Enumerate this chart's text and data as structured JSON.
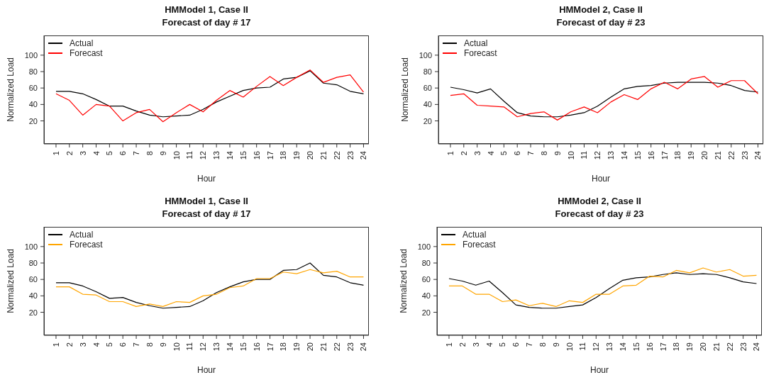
{
  "chart_data": [
    {
      "type": "line",
      "title": "HMModel 1, Case II",
      "subtitle": "Forecast of day # 17",
      "xlabel": "Hour",
      "ylabel": "Normalized Load",
      "x": [
        1,
        2,
        3,
        4,
        5,
        6,
        7,
        8,
        9,
        10,
        11,
        12,
        13,
        14,
        15,
        16,
        17,
        18,
        19,
        20,
        21,
        22,
        23,
        24
      ],
      "xlim": [
        0.1,
        24.4
      ],
      "xticks": [
        1,
        2,
        3,
        4,
        5,
        6,
        7,
        8,
        9,
        10,
        11,
        12,
        13,
        14,
        15,
        16,
        17,
        18,
        19,
        20,
        21,
        22,
        23,
        24
      ],
      "ylim": [
        -8,
        124
      ],
      "yticks": [
        20,
        40,
        60,
        80,
        100
      ],
      "legend": "top left",
      "series": [
        {
          "name": "Actual",
          "color": "#000000",
          "values": [
            56,
            56,
            53,
            46,
            38,
            38,
            32,
            27,
            25,
            26,
            27,
            34,
            43,
            50,
            57,
            60,
            61,
            71,
            73,
            81,
            66,
            64,
            56,
            53
          ]
        },
        {
          "name": "Forecast",
          "color": "#ff0000",
          "values": [
            53,
            45,
            27,
            40,
            38,
            20,
            30,
            34,
            19,
            30,
            40,
            31,
            45,
            57,
            49,
            62,
            74,
            63,
            73,
            82,
            67,
            73,
            76,
            55
          ]
        }
      ]
    },
    {
      "type": "line",
      "title": "HMModel 2, Case II",
      "subtitle": "Forecast of day # 23",
      "xlabel": "Hour",
      "ylabel": "Normalized Load",
      "x": [
        1,
        2,
        3,
        4,
        5,
        6,
        7,
        8,
        9,
        10,
        11,
        12,
        13,
        14,
        15,
        16,
        17,
        18,
        19,
        20,
        21,
        22,
        23,
        24
      ],
      "xlim": [
        0.1,
        24.4
      ],
      "xticks": [
        1,
        2,
        3,
        4,
        5,
        6,
        7,
        8,
        9,
        10,
        11,
        12,
        13,
        14,
        15,
        16,
        17,
        18,
        19,
        20,
        21,
        22,
        23,
        24
      ],
      "ylim": [
        -8,
        124
      ],
      "yticks": [
        20,
        40,
        60,
        80,
        100
      ],
      "legend": "top left",
      "series": [
        {
          "name": "Actual",
          "color": "#000000",
          "values": [
            61,
            58,
            54,
            59,
            44,
            30,
            26,
            25,
            25,
            27,
            30,
            38,
            49,
            59,
            62,
            63,
            66,
            67,
            67,
            67,
            66,
            63,
            57,
            55
          ]
        },
        {
          "name": "Forecast",
          "color": "#ff0000",
          "values": [
            51,
            53,
            39,
            38,
            37,
            25,
            29,
            31,
            21,
            31,
            37,
            30,
            43,
            52,
            46,
            59,
            67,
            59,
            71,
            74,
            61,
            69,
            69,
            53
          ]
        }
      ]
    },
    {
      "type": "line",
      "title": "HMModel 1, Case II",
      "subtitle": "Forecast of day # 17",
      "xlabel": "Hour",
      "ylabel": "Normalized Load",
      "x": [
        1,
        2,
        3,
        4,
        5,
        6,
        7,
        8,
        9,
        10,
        11,
        12,
        13,
        14,
        15,
        16,
        17,
        18,
        19,
        20,
        21,
        22,
        23,
        24
      ],
      "xlim": [
        0.1,
        24.4
      ],
      "xticks": [
        1,
        2,
        3,
        4,
        5,
        6,
        7,
        8,
        9,
        10,
        11,
        12,
        13,
        14,
        15,
        16,
        17,
        18,
        19,
        20,
        21,
        22,
        23,
        24
      ],
      "ylim": [
        -8,
        124
      ],
      "yticks": [
        20,
        40,
        60,
        80,
        100
      ],
      "legend": "top left",
      "series": [
        {
          "name": "Actual",
          "color": "#000000",
          "values": [
            56,
            56,
            52,
            45,
            37,
            38,
            32,
            28,
            25,
            26,
            27,
            34,
            44,
            51,
            57,
            60,
            60,
            71,
            72,
            80,
            65,
            63,
            56,
            53
          ]
        },
        {
          "name": "Forecast",
          "color": "#ffa500",
          "values": [
            51,
            51,
            42,
            41,
            33,
            33,
            27,
            30,
            27,
            33,
            32,
            40,
            42,
            50,
            52,
            61,
            61,
            69,
            67,
            72,
            68,
            70,
            63,
            63
          ]
        }
      ]
    },
    {
      "type": "line",
      "title": "HMModel 2, Case II",
      "subtitle": "Forecast of day # 23",
      "xlabel": "Hour",
      "ylabel": "Normalized Load",
      "x": [
        1,
        2,
        3,
        4,
        5,
        6,
        7,
        8,
        9,
        10,
        11,
        12,
        13,
        14,
        15,
        16,
        17,
        18,
        19,
        20,
        21,
        22,
        23,
        24
      ],
      "xlim": [
        0.1,
        24.4
      ],
      "xticks": [
        1,
        2,
        3,
        4,
        5,
        6,
        7,
        8,
        9,
        10,
        11,
        12,
        13,
        14,
        15,
        16,
        17,
        18,
        19,
        20,
        21,
        22,
        23,
        24
      ],
      "ylim": [
        -8,
        124
      ],
      "yticks": [
        20,
        40,
        60,
        80,
        100
      ],
      "legend": "top left",
      "series": [
        {
          "name": "Actual",
          "color": "#000000",
          "values": [
            61,
            58,
            53,
            58,
            44,
            29,
            26,
            25,
            25,
            27,
            29,
            38,
            49,
            59,
            62,
            63,
            66,
            68,
            66,
            67,
            66,
            62,
            57,
            55
          ]
        },
        {
          "name": "Forecast",
          "color": "#ffa500",
          "values": [
            52,
            52,
            42,
            42,
            33,
            35,
            28,
            31,
            27,
            34,
            32,
            42,
            42,
            52,
            53,
            64,
            63,
            71,
            68,
            74,
            69,
            72,
            64,
            65
          ]
        }
      ]
    }
  ]
}
